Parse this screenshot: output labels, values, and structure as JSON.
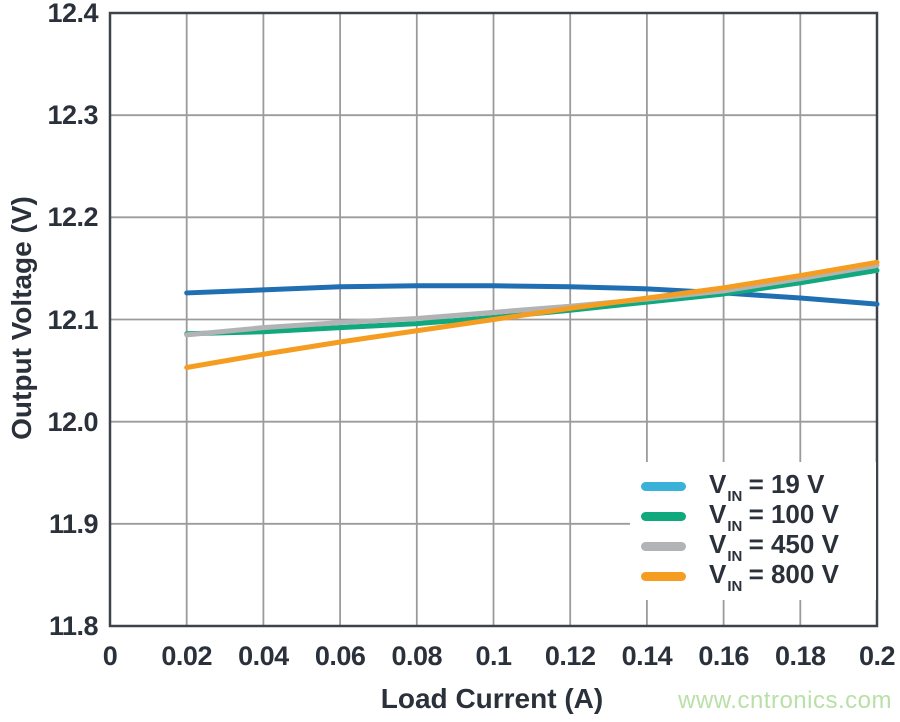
{
  "figure": {
    "watermark": "www.cntronics.com"
  },
  "colors": {
    "grid": "#9b9b9b",
    "border": "#3d424b",
    "text": "#2b313b",
    "watermark": "#b9e0a8",
    "background": "#ffffff"
  },
  "chart_data": {
    "type": "line",
    "title": "",
    "xlabel": "Load Current (A)",
    "ylabel": "Output Voltage (V)",
    "xlim": [
      0,
      0.2
    ],
    "ylim": [
      11.8,
      12.4
    ],
    "grid": true,
    "legend_position": "lower right",
    "x_ticks": [
      0,
      0.02,
      0.04,
      0.06,
      0.08,
      0.1,
      0.12,
      0.14,
      0.16,
      0.18,
      0.2
    ],
    "x_tick_labels": [
      "0",
      "0.02",
      "0.04",
      "0.06",
      "0.08",
      "0.1",
      "0.12",
      "0.14",
      "0.16",
      "0.18",
      "0.2"
    ],
    "y_ticks": [
      12.4,
      12.3,
      12.2,
      12.1,
      12.0,
      11.9,
      11.8
    ],
    "y_tick_labels": [
      "12.4",
      "12.3",
      "12.2",
      "12.1",
      "12.0",
      "11.9",
      "11.8"
    ],
    "x": [
      0.02,
      0.04,
      0.06,
      0.08,
      0.1,
      0.12,
      0.14,
      0.16,
      0.18,
      0.2
    ],
    "series": [
      {
        "name": "VIN = 19 V",
        "legend_parts": {
          "v": "V",
          "sub": "IN",
          "rest": " = 19 V"
        },
        "line_color": "#1f6fb2",
        "swatch_color": "#3ab1d8",
        "values": [
          12.126,
          12.129,
          12.132,
          12.133,
          12.133,
          12.132,
          12.13,
          12.126,
          12.121,
          12.115
        ]
      },
      {
        "name": "VIN = 100 V",
        "legend_parts": {
          "v": "V",
          "sub": "IN",
          "rest": " = 100 V"
        },
        "line_color": "#10a87d",
        "swatch_color": "#10a87d",
        "values": [
          12.086,
          12.088,
          12.092,
          12.096,
          12.102,
          12.109,
          12.117,
          12.125,
          12.136,
          12.148
        ]
      },
      {
        "name": "VIN = 450 V",
        "legend_parts": {
          "v": "V",
          "sub": "IN",
          "rest": " = 450 V"
        },
        "line_color": "#b2b3b5",
        "swatch_color": "#b2b3b5",
        "values": [
          12.085,
          12.092,
          12.097,
          12.101,
          12.107,
          12.113,
          12.12,
          12.128,
          12.14,
          12.153
        ]
      },
      {
        "name": "VIN = 800 V",
        "legend_parts": {
          "v": "V",
          "sub": "IN",
          "rest": " = 800 V"
        },
        "line_color": "#f59d21",
        "swatch_color": "#f59d21",
        "values": [
          12.053,
          12.066,
          12.078,
          12.089,
          12.1,
          12.111,
          12.121,
          12.131,
          12.143,
          12.156
        ]
      }
    ]
  }
}
